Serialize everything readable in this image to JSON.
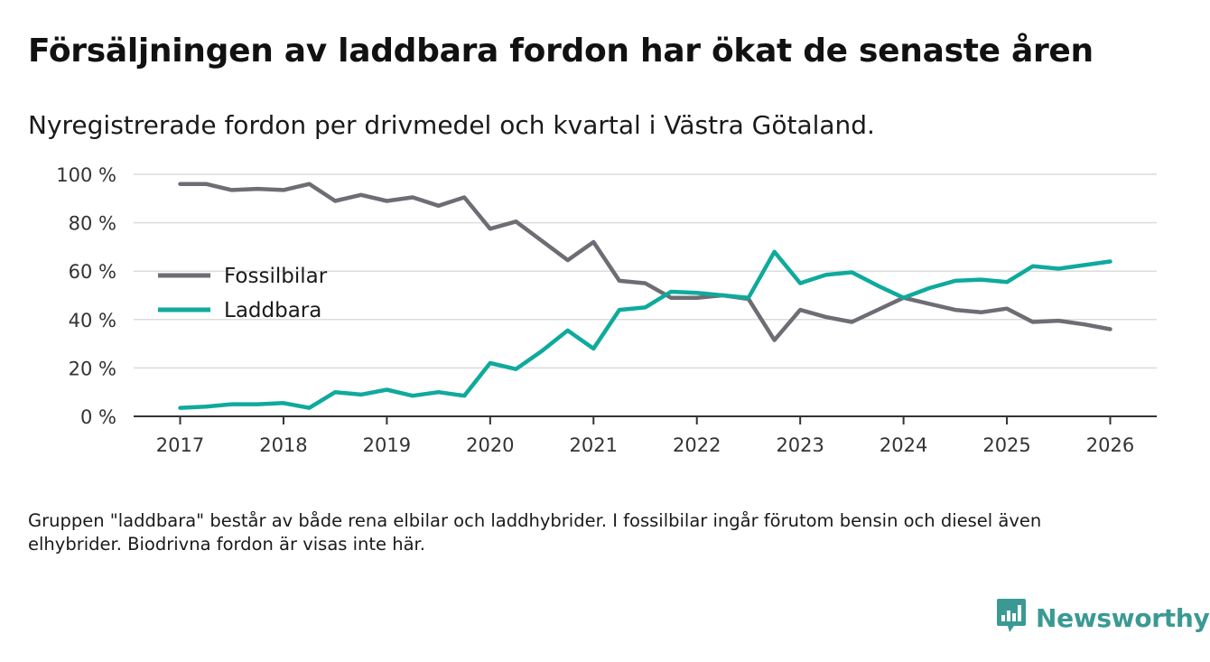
{
  "title": "Försäljningen av laddbara fordon har ökat de senaste åren",
  "subtitle": "Nyregistrerade fordon per drivmedel och kvartal i Västra Götaland.",
  "footnote": "Gruppen \"laddbara\" består av både rena elbilar och laddhybrider. I fossilbilar ingår förutom bensin och diesel även elhybrider. Biodrivna fordon är visas inte här.",
  "brand": {
    "name": "Newsworthy",
    "icon": "newsworthy-logo-icon",
    "color": "#3a9a93"
  },
  "chart_data": {
    "type": "line",
    "title": "Försäljningen av laddbara fordon har ökat de senaste åren",
    "subtitle": "Nyregistrerade fordon per drivmedel och kvartal i Västra Götaland.",
    "xlabel": "",
    "ylabel": "",
    "ylim": [
      0,
      100
    ],
    "xlim": [
      2016.55,
      2026.45
    ],
    "grid": true,
    "legend": "left-middle",
    "y_ticks": [
      {
        "value": 0,
        "label": "0 %"
      },
      {
        "value": 20,
        "label": "20 %"
      },
      {
        "value": 40,
        "label": "40 %"
      },
      {
        "value": 60,
        "label": "60 %"
      },
      {
        "value": 80,
        "label": "80 %"
      },
      {
        "value": 100,
        "label": "100 %"
      }
    ],
    "x_ticks": [
      {
        "value": 2017,
        "label": "2017"
      },
      {
        "value": 2018,
        "label": "2018"
      },
      {
        "value": 2019,
        "label": "2019"
      },
      {
        "value": 2020,
        "label": "2020"
      },
      {
        "value": 2021,
        "label": "2021"
      },
      {
        "value": 2022,
        "label": "2022"
      },
      {
        "value": 2023,
        "label": "2023"
      },
      {
        "value": 2024,
        "label": "2024"
      },
      {
        "value": 2025,
        "label": "2025"
      },
      {
        "value": 2026,
        "label": "2026"
      }
    ],
    "x": [
      2017.0,
      2017.25,
      2017.5,
      2017.75,
      2018.0,
      2018.25,
      2018.5,
      2018.75,
      2019.0,
      2019.25,
      2019.5,
      2019.75,
      2020.0,
      2020.25,
      2020.5,
      2020.75,
      2021.0,
      2021.25,
      2021.5,
      2021.75,
      2022.0,
      2022.25,
      2022.5,
      2022.75,
      2023.0,
      2023.25,
      2023.5,
      2023.75,
      2024.0,
      2024.25,
      2024.5,
      2024.75,
      2025.0,
      2025.25,
      2025.5,
      2025.75,
      2026.0
    ],
    "series": [
      {
        "name": "Fossilbilar",
        "color": "#6e6d74",
        "values": [
          96,
          96,
          93.5,
          94,
          93.5,
          96,
          89,
          91.5,
          89,
          90.5,
          87,
          90.5,
          77.5,
          80.5,
          72.5,
          64.5,
          72,
          56,
          55,
          49,
          49,
          50,
          48.5,
          31.5,
          44,
          41,
          39,
          44,
          49,
          46.5,
          44,
          43,
          44.5,
          39,
          39.5,
          38,
          36
        ]
      },
      {
        "name": "Laddbara",
        "color": "#0faa9c",
        "values": [
          3.5,
          4,
          5,
          5,
          5.5,
          3.5,
          10,
          9,
          11,
          8.5,
          10,
          8.5,
          22,
          19.5,
          27,
          35.5,
          28,
          44,
          45,
          51.5,
          51,
          50,
          49,
          68,
          55,
          58.5,
          59.5,
          54,
          49,
          53,
          56,
          56.5,
          55.5,
          62,
          61,
          62.5,
          64
        ]
      }
    ]
  }
}
